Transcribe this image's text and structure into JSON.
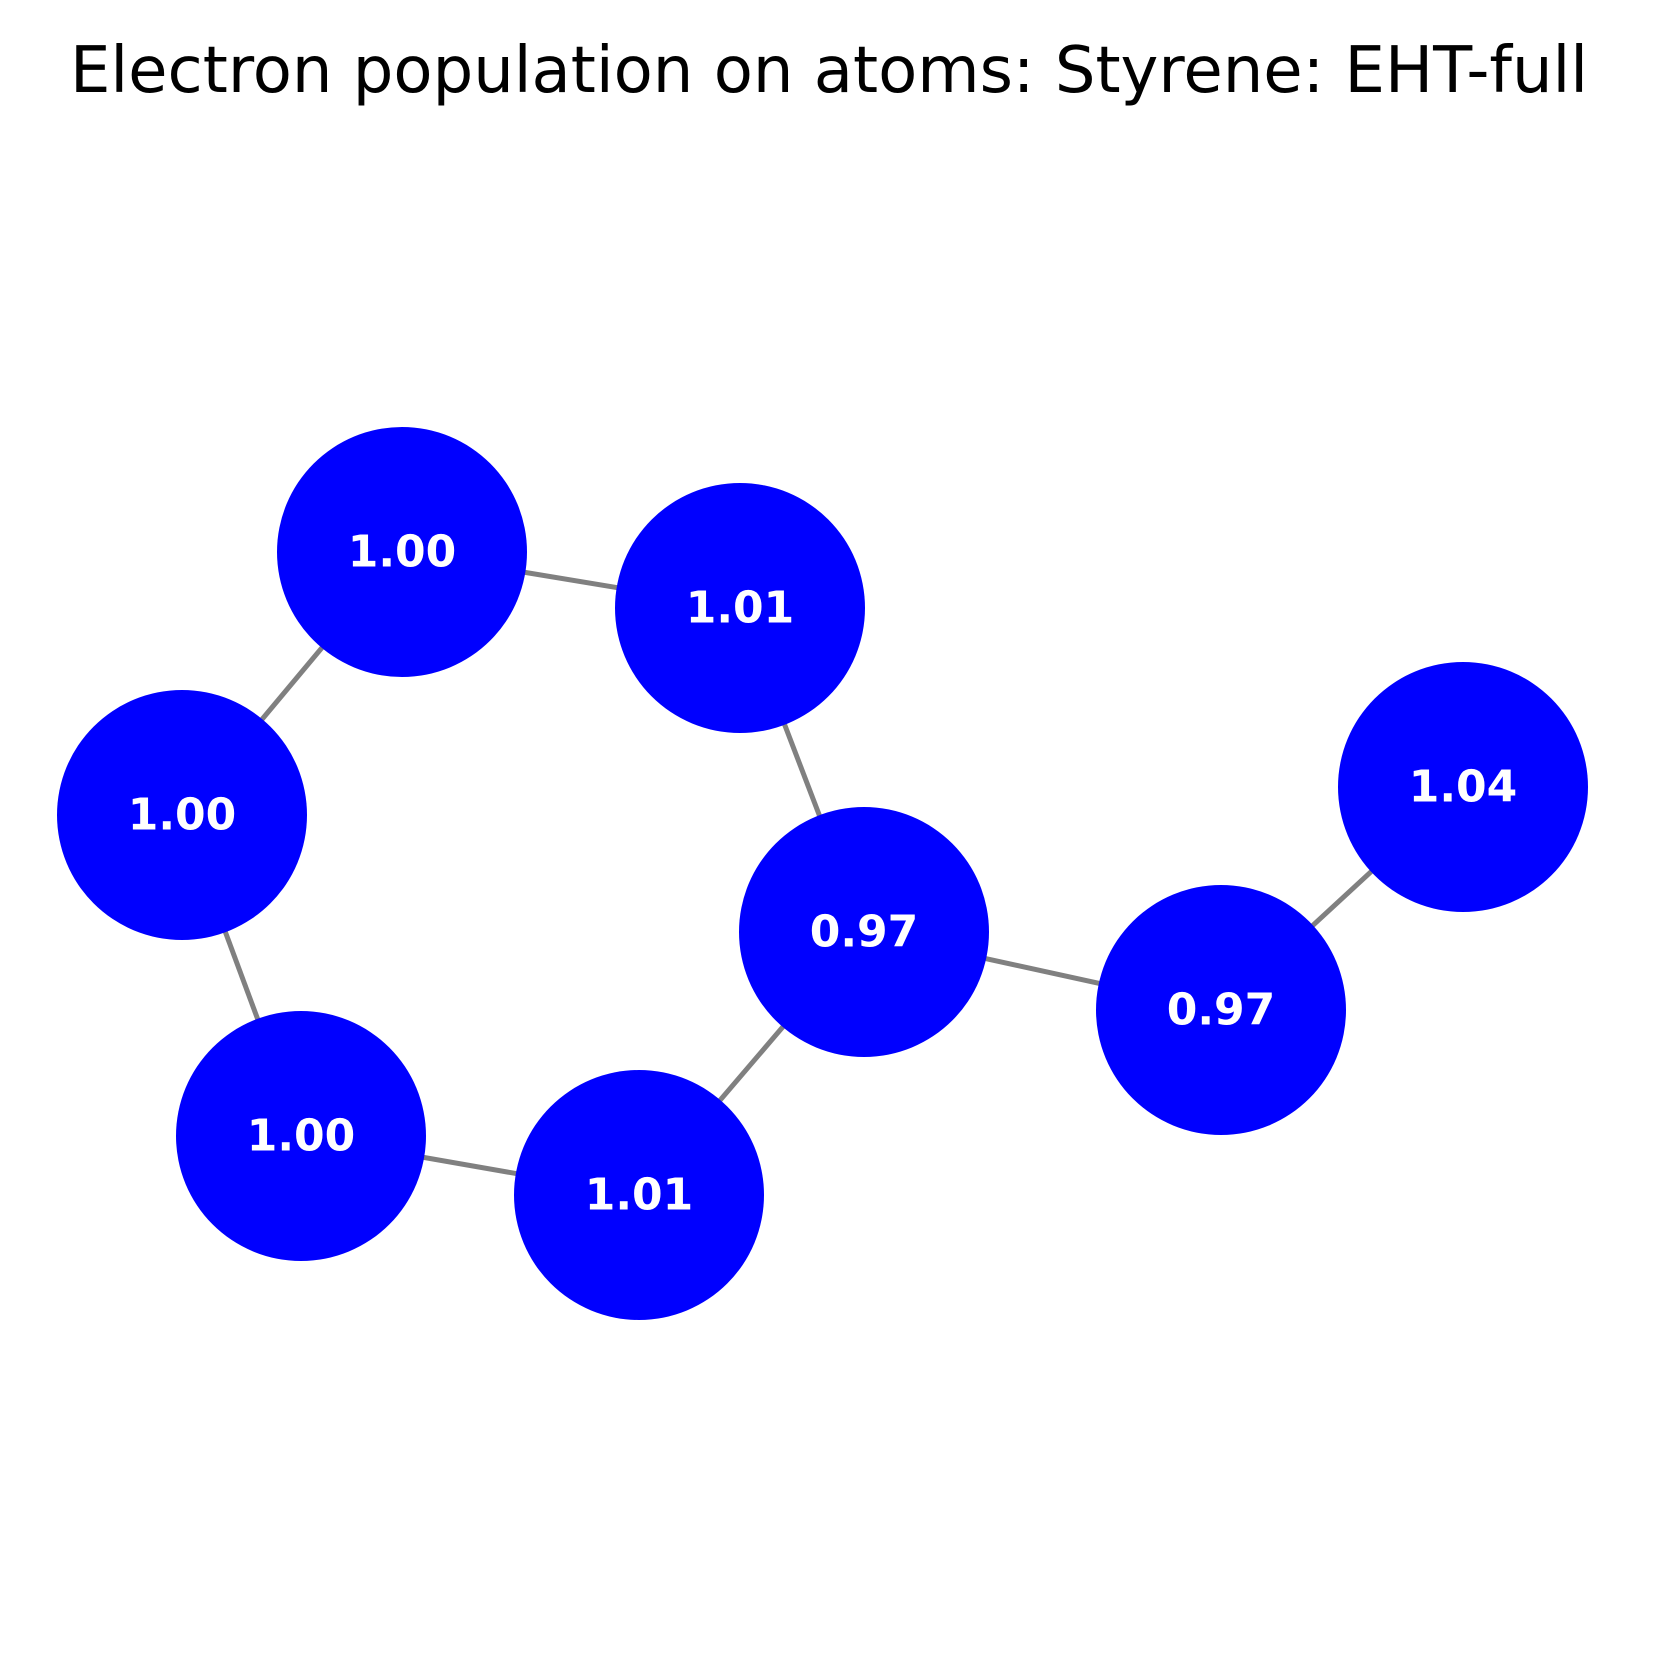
{
  "title": "Electron population on atoms: Styrene: EHT-full",
  "colors": {
    "node_fill": "#0000ff",
    "node_label": "#ffffff",
    "edge": "#808080",
    "background": "#ffffff"
  },
  "atoms": [
    {
      "id": "a1",
      "value": "1.00"
    },
    {
      "id": "a2",
      "value": "1.01"
    },
    {
      "id": "a3",
      "value": "1.00"
    },
    {
      "id": "a4",
      "value": "0.97"
    },
    {
      "id": "a5",
      "value": "1.04"
    },
    {
      "id": "a6",
      "value": "0.97"
    },
    {
      "id": "a7",
      "value": "1.00"
    },
    {
      "id": "a8",
      "value": "1.01"
    }
  ],
  "bonds": [
    [
      "a1",
      "a2"
    ],
    [
      "a1",
      "a3"
    ],
    [
      "a2",
      "a4"
    ],
    [
      "a3",
      "a7"
    ],
    [
      "a7",
      "a8"
    ],
    [
      "a8",
      "a4"
    ],
    [
      "a4",
      "a6"
    ],
    [
      "a6",
      "a5"
    ]
  ]
}
